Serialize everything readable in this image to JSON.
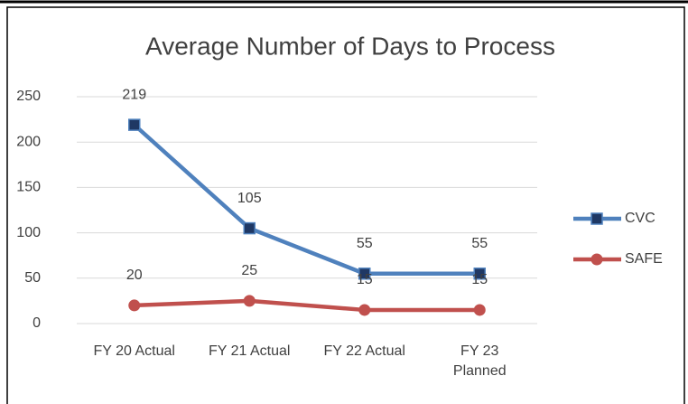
{
  "chart_data": {
    "type": "line",
    "title": "Average Number of Days to Process",
    "categories": [
      "FY 20 Actual",
      "FY 21 Actual",
      "FY 22 Actual",
      "FY 23 Planned"
    ],
    "series": [
      {
        "name": "CVC",
        "color": "#4f81bd",
        "marker": "square",
        "values": [
          219,
          105,
          55,
          55
        ]
      },
      {
        "name": "SAFE",
        "color": "#c0504d",
        "marker": "circle",
        "values": [
          20,
          25,
          15,
          15
        ]
      }
    ],
    "ylim": [
      0,
      250
    ],
    "yticks": [
      0,
      50,
      100,
      150,
      200,
      250
    ],
    "grid": true,
    "legend": "right"
  }
}
